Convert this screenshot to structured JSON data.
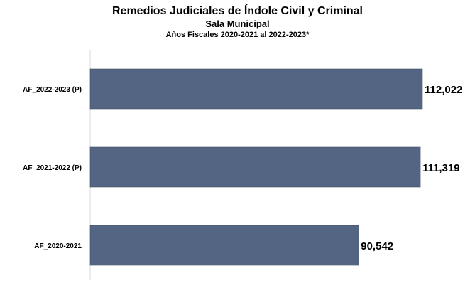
{
  "chart_data": {
    "type": "bar",
    "orientation": "horizontal",
    "title": "Remedios Judiciales de Índole Civil y Criminal",
    "subtitle": "Sala Municipal",
    "subtitle2": "Años Fiscales 2020-2021 al 2022-2023*",
    "categories": [
      "AF_2022-2023 (P)",
      "AF_2021-2022 (P)",
      "AF_2020-2021"
    ],
    "values": [
      112022,
      111319,
      90542
    ],
    "value_labels": [
      "112,022",
      "111,319",
      "90,542"
    ],
    "xlim": [
      0,
      120000
    ],
    "bar_color": "#536582",
    "axis_color": "#d9d9d9",
    "grid": false,
    "legend": "none"
  }
}
